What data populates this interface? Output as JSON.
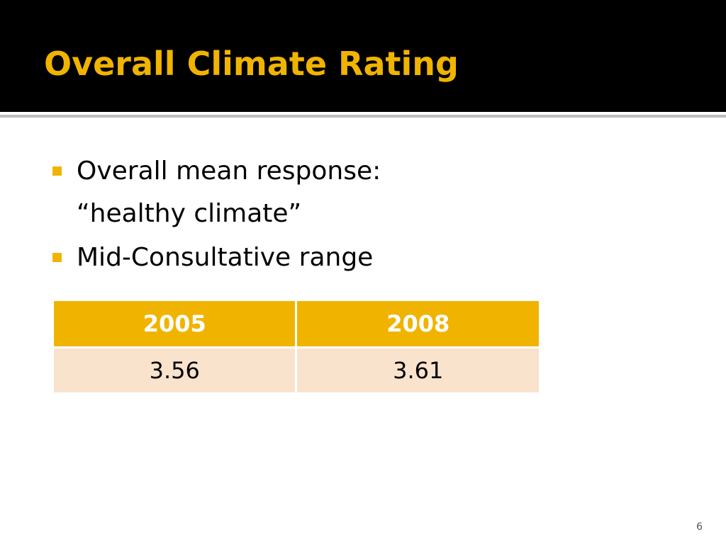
{
  "slide": {
    "title": "Overall Climate Rating",
    "bullets": [
      {
        "line1": "Overall mean response:",
        "line2": "“healthy climate”"
      },
      {
        "line1": "Mid-Consultative range"
      }
    ],
    "table": {
      "headers": [
        "2005",
        "2008"
      ],
      "rows": [
        [
          "3.56",
          "3.61"
        ]
      ]
    },
    "slide_number": "6"
  },
  "colors": {
    "title_bar": "#000000",
    "accent": "#f0b400",
    "table_row": "#f9e3cd"
  }
}
